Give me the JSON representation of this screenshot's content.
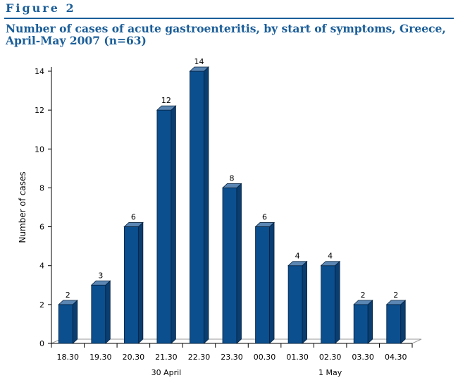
{
  "figure": {
    "label": "Figure 2",
    "title": "Number of cases of acute gastroenteritis, by start of symptoms, Greece, April-May 2007 (n=63)"
  },
  "colors": {
    "accent": "#1b5e99",
    "bar_front": "#0b4f8f",
    "bar_side": "#0a3d70",
    "bar_top": "#5b86b4"
  },
  "chart_data": {
    "type": "bar",
    "categories": [
      "18.30",
      "19.30",
      "20.30",
      "21.30",
      "22.30",
      "23.30",
      "00.30",
      "01.30",
      "02.30",
      "03.30",
      "04.30"
    ],
    "values": [
      2,
      3,
      6,
      12,
      14,
      8,
      6,
      4,
      4,
      2,
      2
    ],
    "group_labels": [
      {
        "label": "30 April",
        "category": "21.30"
      },
      {
        "label": "1 May",
        "category": "02.30"
      }
    ],
    "xlabel": "",
    "ylabel": "Number of cases",
    "ylim": [
      0,
      14
    ],
    "yticks": [
      0,
      2,
      4,
      6,
      8,
      10,
      12,
      14
    ],
    "data_labels": true,
    "grid": false,
    "legend": "none",
    "style": "3d"
  }
}
